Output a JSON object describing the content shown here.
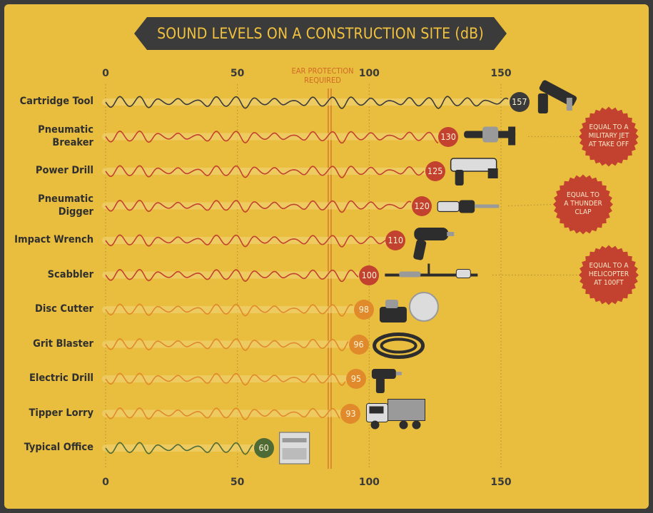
{
  "chart_data": {
    "type": "bar",
    "title": "SOUND LEVELS ON A CONSTRUCTION SITE  (dB)",
    "xlim": [
      0,
      160
    ],
    "ticks": [
      0,
      50,
      100,
      150
    ],
    "tick_labels": [
      "0",
      "50",
      "100",
      "150"
    ],
    "threshold": {
      "value": 85,
      "label": "EAR PROTECTION REQUIRED",
      "label_lines": [
        "EAR PROTECTION",
        "REQUIRED"
      ]
    },
    "categories": [
      {
        "label_lines": [
          "Cartridge Tool"
        ],
        "value": 157,
        "color": "#3a3a3a"
      },
      {
        "label_lines": [
          "Pneumatic",
          "Breaker"
        ],
        "value": 130,
        "color": "#c2412f"
      },
      {
        "label_lines": [
          "Power Drill"
        ],
        "value": 125,
        "color": "#c2412f"
      },
      {
        "label_lines": [
          "Pneumatic",
          "Digger"
        ],
        "value": 120,
        "color": "#c2412f"
      },
      {
        "label_lines": [
          "Impact Wrench"
        ],
        "value": 110,
        "color": "#c2412f"
      },
      {
        "label_lines": [
          "Scabbler"
        ],
        "value": 100,
        "color": "#c2412f"
      },
      {
        "label_lines": [
          "Disc Cutter"
        ],
        "value": 98,
        "color": "#e08a2c"
      },
      {
        "label_lines": [
          "Grit Blaster"
        ],
        "value": 96,
        "color": "#e08a2c"
      },
      {
        "label_lines": [
          "Electric Drill"
        ],
        "value": 95,
        "color": "#e08a2c"
      },
      {
        "label_lines": [
          "Tipper Lorry"
        ],
        "value": 93,
        "color": "#e08a2c"
      },
      {
        "label_lines": [
          "Typical Office"
        ],
        "value": 60,
        "color": "#4f6b35"
      }
    ],
    "annotations": [
      {
        "row": 1,
        "lines": [
          "EQUAL TO A",
          "MILITARY JET",
          "AT TAKE OFF"
        ]
      },
      {
        "row": 3,
        "lines": [
          "EQUAL TO",
          "A THUNDER",
          "CLAP"
        ]
      },
      {
        "row": 5,
        "lines": [
          "EQUAL TO A",
          "HELICOPTER",
          "AT 100FT"
        ]
      }
    ],
    "icons": [
      "nail-gun-icon",
      "jackhammer-icon",
      "power-drill-icon",
      "digger-icon",
      "impact-wrench-icon",
      "scabbler-icon",
      "disc-cutter-icon",
      "hose-icon",
      "cordless-drill-icon",
      "tipper-lorry-icon",
      "photocopier-icon"
    ]
  },
  "colors": {
    "background": "#e9bd3e",
    "banner": "#3b3b3b",
    "title": "#f2c23d",
    "threshold_line": "#d06a26",
    "callout": "#c2412f"
  }
}
